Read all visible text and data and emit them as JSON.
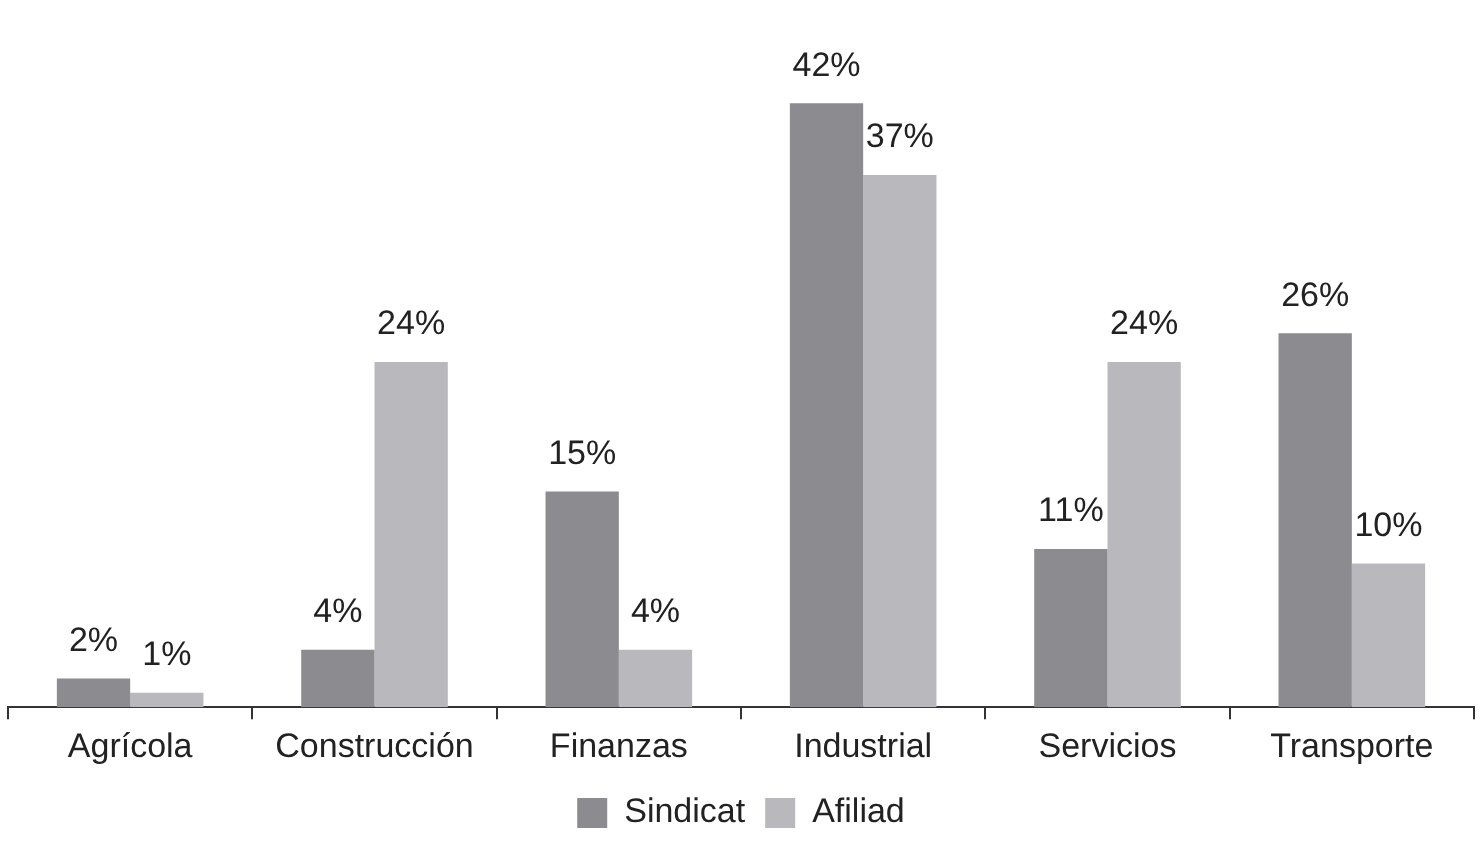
{
  "chart_data": {
    "type": "bar",
    "categories": [
      "Agrícola",
      "Construcción",
      "Finanzas",
      "Industrial",
      "Servicios",
      "Transporte"
    ],
    "series": [
      {
        "name": "Sindicat",
        "color": "#8c8c90",
        "values": [
          2,
          4,
          15,
          42,
          11,
          26
        ],
        "value_labels": [
          "2%",
          "4%",
          "15%",
          "42%",
          "11%",
          "26%"
        ]
      },
      {
        "name": "Afiliad",
        "color": "#b9b9bd",
        "values": [
          1,
          24,
          4,
          37,
          24,
          10
        ],
        "value_labels": [
          "1%",
          "24%",
          "4%",
          "37%",
          "24%",
          "10%"
        ]
      }
    ],
    "grid": false,
    "legend": "bottom"
  }
}
